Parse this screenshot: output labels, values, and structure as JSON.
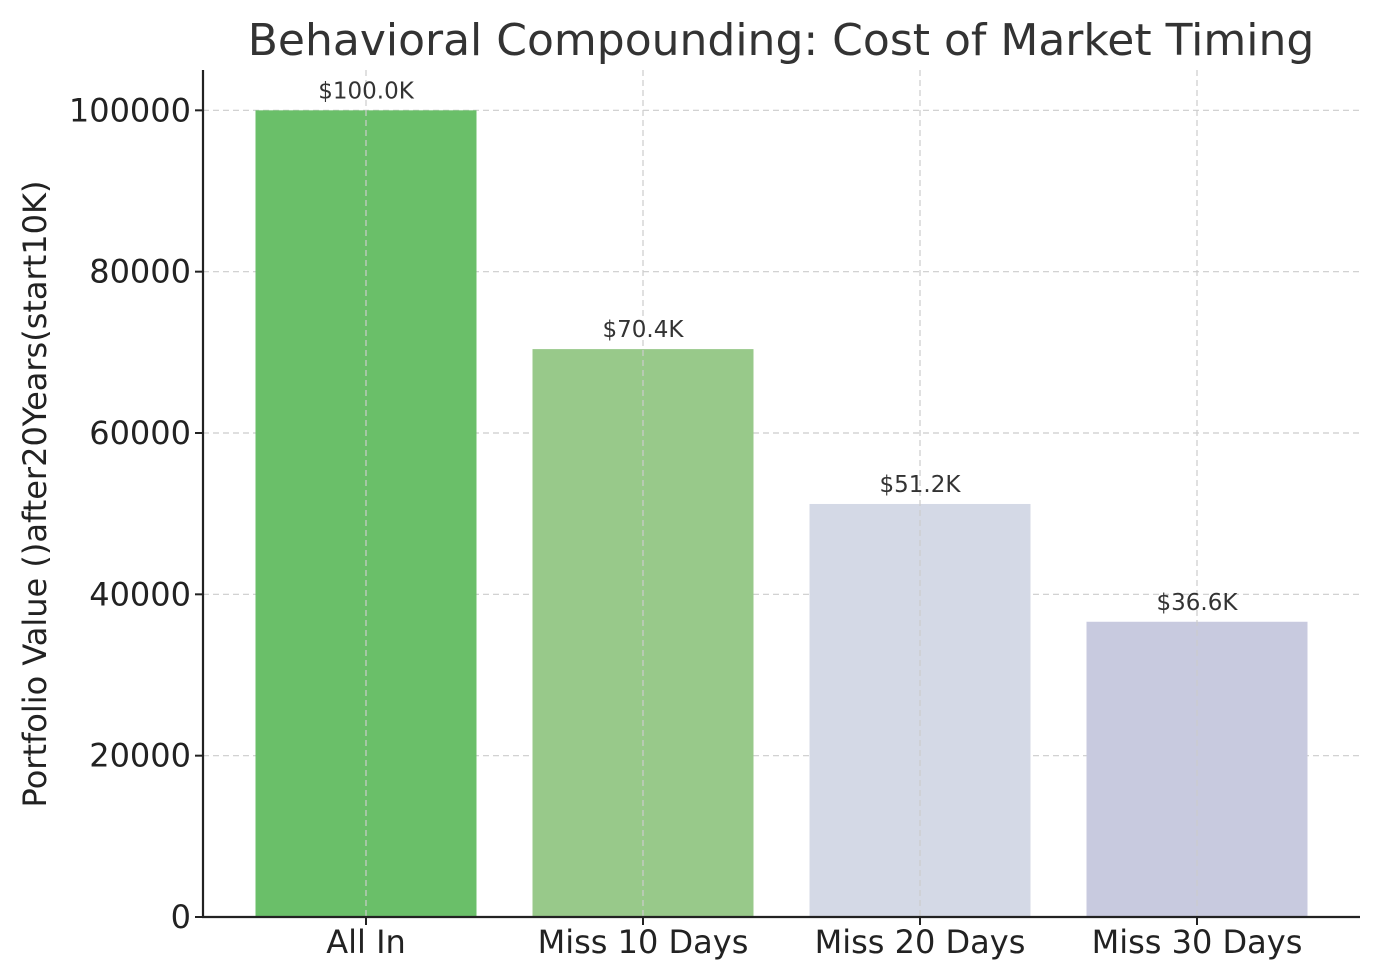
{
  "chart_data": {
    "type": "bar",
    "title": "Behavioral Compounding: Cost of Market Timing",
    "xlabel": "",
    "ylabel": "Portfolio Value ()after20Years(start10K)",
    "categories": [
      "All In",
      "Miss 10 Days",
      "Miss 20 Days",
      "Miss 30 Days"
    ],
    "values": [
      100000,
      70400,
      51200,
      36600
    ],
    "data_labels": [
      "$100.0K",
      "$70.4K",
      "$51.2K",
      "$36.6K"
    ],
    "colors": [
      "#6abf69",
      "#98c98a",
      "#d4d9e6",
      "#c8cadf"
    ],
    "ylim": [
      0,
      105000
    ],
    "yticks": [
      0,
      20000,
      40000,
      60000,
      80000,
      100000
    ],
    "ytick_labels": [
      "0",
      "20000",
      "40000",
      "60000",
      "80000",
      "100000"
    ],
    "grid": true
  }
}
